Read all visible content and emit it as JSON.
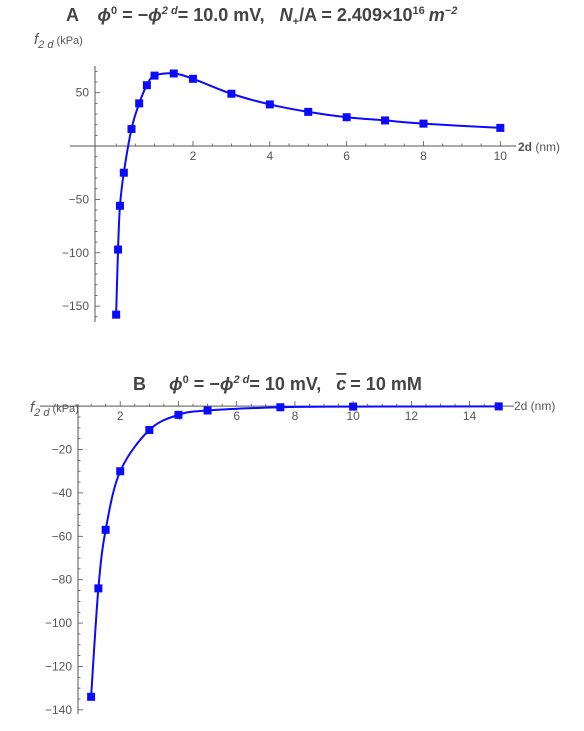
{
  "colors": {
    "series": "#0a0aff",
    "axis": "#555555",
    "title": "#444444"
  },
  "chart_data": [
    {
      "type": "line",
      "panel_label": "A",
      "title_parts": {
        "phi0": "ϕ",
        "sup0": "0",
        "eq1": " = −",
        "phi2d": "ϕ",
        "sup2d": "2 d",
        "val": "= 10.0 mV,",
        "np": "N",
        "npsub": "+",
        "na": "/A = 2.409×10",
        "exp": "16",
        "unit": "m",
        "unitexp": "−2"
      },
      "xlabel": "2d",
      "xunit": " (nm)",
      "ylabel": "f",
      "ylabelsub": "2 d",
      "yunit": " (kPa)",
      "xlim": [
        -0.55,
        10.2
      ],
      "ylim": [
        -163,
        75
      ],
      "xticks": [
        2,
        4,
        6,
        8,
        10
      ],
      "xtick_labels": [
        "2",
        "4",
        "6",
        "8",
        "10"
      ],
      "yticks": [
        -150,
        -100,
        -50,
        50
      ],
      "ytick_labels": [
        "−150",
        "−100",
        "−50",
        "50"
      ],
      "marker": "square",
      "series": [
        {
          "x": [
            0.0,
            0.05,
            0.1,
            0.2,
            0.4,
            0.6,
            0.8,
            1.0,
            1.5,
            2.0,
            3.0,
            4.0,
            5.0,
            6.0,
            7.0,
            8.0,
            10.0
          ],
          "y": [
            -158,
            -97,
            -56,
            -25,
            16,
            40,
            57,
            66,
            68,
            63,
            49,
            39,
            32,
            27,
            24,
            21,
            17
          ]
        }
      ]
    },
    {
      "type": "line",
      "panel_label": "B",
      "title_parts": {
        "phi0": "ϕ",
        "sup0": "0",
        "eq1": " = −",
        "phi2d": "ϕ",
        "sup2d": "2 d",
        "val": "= 10 mV,",
        "cbar": "c",
        "cval": "= 10 mM"
      },
      "xlabel": "2d (nm)",
      "ylabel": "f",
      "ylabelsub": "2 d",
      "yunit": " (kPa)",
      "xlim": [
        0.55,
        15.25
      ],
      "ylim": [
        -141,
        1
      ],
      "xticks": [
        2,
        4,
        6,
        8,
        10,
        12,
        14
      ],
      "xtick_labels": [
        "2",
        "4",
        "6",
        "8",
        "10",
        "12",
        "14"
      ],
      "yticks": [
        -20,
        -40,
        -60,
        -80,
        -100,
        -120,
        -140
      ],
      "ytick_labels": [
        "−20",
        "−40",
        "−60",
        "−80",
        "−100",
        "−120",
        "−140"
      ],
      "marker": "square",
      "series": [
        {
          "x": [
            1.0,
            1.25,
            1.5,
            2.0,
            3.0,
            4.0,
            5.0,
            7.5,
            10.0,
            15.0
          ],
          "y": [
            -134,
            -84,
            -57,
            -30,
            -11,
            -4,
            -2,
            -0.5,
            -0.2,
            -0.1
          ]
        }
      ]
    }
  ]
}
